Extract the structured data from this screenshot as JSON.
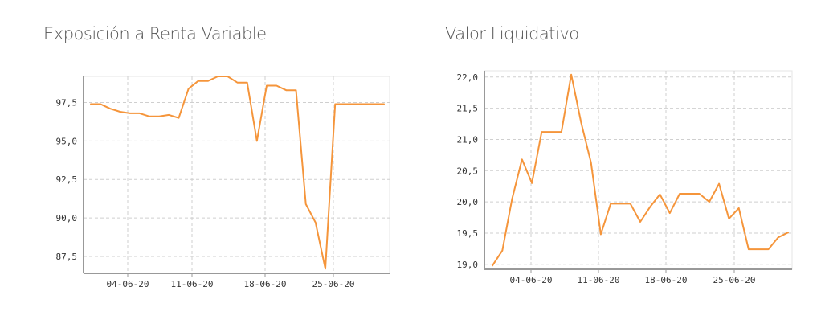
{
  "colors": {
    "line": "#F5953B",
    "grid": "#CFCFCF",
    "axis": "#999999",
    "frame": "#E5E5E5"
  },
  "chart_data": [
    {
      "type": "line",
      "title": "Exposición a Renta Variable",
      "x_tick_labels": [
        "04-06-20",
        "11-06-20",
        "18-06-20",
        "25-06-20"
      ],
      "y_tick_labels": [
        "87,5",
        "90,0",
        "92,5",
        "95,0",
        "97,5"
      ],
      "y_ticks": [
        87.5,
        90.0,
        92.5,
        95.0,
        97.5
      ],
      "ylim": [
        86.4,
        99.2
      ],
      "grid": true,
      "legend": "none",
      "series": [
        {
          "values": [
            97.4,
            97.4,
            97.1,
            96.9,
            96.8,
            96.8,
            96.6,
            96.6,
            96.7,
            96.5,
            98.4,
            98.9,
            98.9,
            99.2,
            99.2,
            98.8,
            98.8,
            95.0,
            98.6,
            98.6,
            98.3,
            98.3,
            90.9,
            89.7,
            86.7,
            97.4,
            97.4,
            97.4,
            97.4,
            97.4,
            97.4
          ]
        }
      ]
    },
    {
      "type": "line",
      "title": "Valor Liquidativo",
      "x_tick_labels": [
        "04-06-20",
        "11-06-20",
        "18-06-20",
        "25-06-20"
      ],
      "y_tick_labels": [
        "19,0",
        "19,5",
        "20,0",
        "20,5",
        "21,0",
        "21,5",
        "22,0"
      ],
      "y_ticks": [
        19.0,
        19.5,
        20.0,
        20.5,
        21.0,
        21.5,
        22.0
      ],
      "ylim": [
        18.92,
        22.1
      ],
      "grid": true,
      "legend": "none",
      "series": [
        {
          "values": [
            18.98,
            19.22,
            20.05,
            20.68,
            20.3,
            21.12,
            21.12,
            21.12,
            22.04,
            21.27,
            20.63,
            19.48,
            19.97,
            19.97,
            19.97,
            19.68,
            19.92,
            20.12,
            19.82,
            20.13,
            20.13,
            20.13,
            20.0,
            20.29,
            19.73,
            19.9,
            19.24,
            19.24,
            19.24,
            19.43,
            19.51
          ]
        }
      ]
    }
  ]
}
